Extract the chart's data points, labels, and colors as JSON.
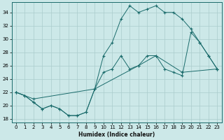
{
  "xlabel": "Humidex (Indice chaleur)",
  "background_color": "#cce8e8",
  "grid_color": "#aacccc",
  "line_color": "#1a6b6b",
  "xlim": [
    -0.5,
    23.5
  ],
  "ylim": [
    17.5,
    35.5
  ],
  "yticks": [
    18,
    20,
    22,
    24,
    26,
    28,
    30,
    32,
    34
  ],
  "xticks": [
    0,
    1,
    2,
    3,
    4,
    5,
    6,
    7,
    8,
    9,
    10,
    11,
    12,
    13,
    14,
    15,
    16,
    17,
    18,
    19,
    20,
    21,
    22,
    23
  ],
  "s1_x": [
    0,
    1,
    2,
    3,
    4,
    5,
    6,
    7,
    8,
    9,
    10,
    11,
    12,
    13,
    14,
    15,
    16,
    17,
    18,
    19,
    20,
    21,
    22,
    23
  ],
  "s1_y": [
    22.0,
    21.5,
    20.5,
    19.5,
    20.0,
    19.5,
    18.5,
    18.5,
    19.0,
    22.5,
    27.5,
    29.5,
    33.0,
    35.0,
    34.0,
    34.5,
    35.0,
    34.0,
    34.0,
    33.0,
    31.5,
    29.5,
    27.5,
    25.5
  ],
  "s2_x": [
    0,
    1,
    2,
    3,
    4,
    5,
    6,
    7,
    8,
    9,
    10,
    11,
    12,
    13,
    14,
    15,
    16,
    17,
    18,
    19,
    20,
    21,
    22,
    23
  ],
  "s2_y": [
    22.0,
    21.5,
    20.5,
    19.5,
    20.0,
    19.5,
    18.5,
    18.5,
    19.0,
    22.5,
    25.0,
    25.5,
    27.5,
    25.5,
    26.0,
    27.5,
    27.5,
    25.5,
    25.0,
    24.5,
    31.0,
    29.5,
    27.5,
    25.5
  ],
  "s3_x": [
    0,
    2,
    9,
    14,
    16,
    19,
    23
  ],
  "s3_y": [
    22.0,
    21.0,
    22.5,
    26.0,
    27.5,
    25.0,
    25.5
  ]
}
